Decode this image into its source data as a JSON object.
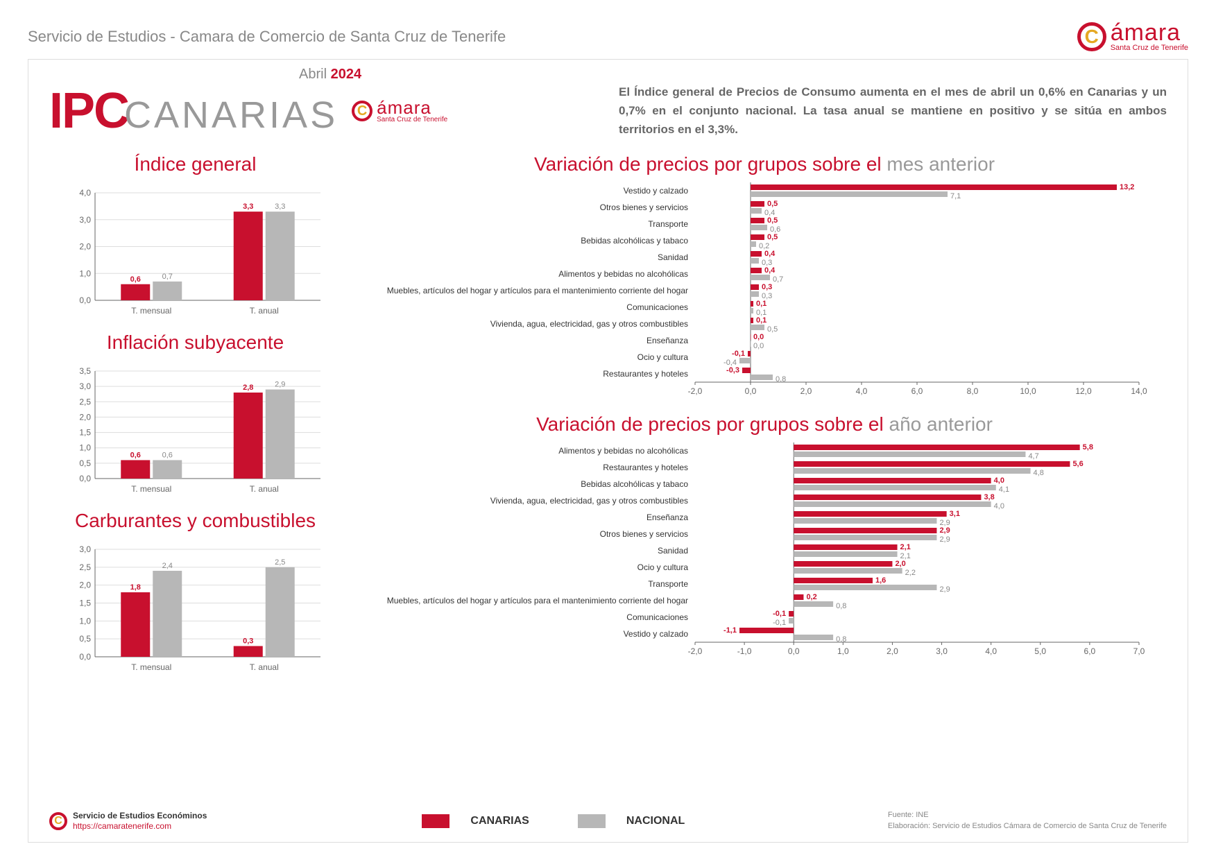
{
  "header_title": "Servicio de Estudios - Camara de Comercio de Santa Cruz de Tenerife",
  "logo": {
    "brand": "ámara",
    "sub": "Santa Cruz de Tenerife"
  },
  "date": {
    "month": "Abril",
    "year": "2024"
  },
  "ipc_title": {
    "ip": "IP",
    "can": "CANARIAS"
  },
  "summary": "El Índice general de Precios de Consumo aumenta en el mes de abril un 0,6% en Canarias y un 0,7% en el conjunto nacional. La tasa anual se mantiene en positivo y se sitúa en ambos territorios en el 3,3%.",
  "colors": {
    "canarias": "#c8102e",
    "nacional": "#b7b7b7",
    "grid": "#dddddd",
    "axis": "#666666",
    "text": "#333333",
    "grey_text": "#888888"
  },
  "legend": {
    "canarias": "CANARIAS",
    "nacional": "NACIONAL"
  },
  "source": {
    "fuente": "Fuente: INE",
    "elab": "Elaboración: Servicio de Estudios Cámara de Comercio de Santa Cruz de Tenerife"
  },
  "se_logo": {
    "line1": "Servicio de Estudios Económinos",
    "line2": "https://camaratenerife.com"
  },
  "charts_small": [
    {
      "title": "Índice general",
      "ylim": [
        0,
        4.0
      ],
      "ystep": 1.0,
      "categories": [
        "T. mensual",
        "T. anual"
      ],
      "series": [
        {
          "name": "canarias",
          "values": [
            0.6,
            3.3
          ],
          "labels": [
            "0,6",
            "3,3"
          ]
        },
        {
          "name": "nacional",
          "values": [
            0.7,
            3.3
          ],
          "labels": [
            "0,7",
            "3,3"
          ]
        }
      ]
    },
    {
      "title": "Inflación subyacente",
      "ylim": [
        0,
        3.5
      ],
      "ystep": 0.5,
      "categories": [
        "T. mensual",
        "T. anual"
      ],
      "series": [
        {
          "name": "canarias",
          "values": [
            0.6,
            2.8
          ],
          "labels": [
            "0,6",
            "2,8"
          ]
        },
        {
          "name": "nacional",
          "values": [
            0.6,
            2.9
          ],
          "labels": [
            "0,6",
            "2,9"
          ]
        }
      ]
    },
    {
      "title": "Carburantes y combustibles",
      "ylim": [
        0,
        3.0
      ],
      "ystep": 0.5,
      "categories": [
        "T. mensual",
        "T. anual"
      ],
      "series": [
        {
          "name": "canarias",
          "values": [
            1.8,
            0.3
          ],
          "labels": [
            "1,8",
            "0,3"
          ]
        },
        {
          "name": "nacional",
          "values": [
            2.4,
            2.5
          ],
          "labels": [
            "2,4",
            "2,5"
          ]
        }
      ]
    }
  ],
  "chart_month": {
    "title_red": "Variación de precios por grupos sobre el ",
    "title_grey": "mes anterior",
    "xlim": [
      -2,
      14
    ],
    "xstep": 2,
    "rows": [
      {
        "label": "Vestido y calzado",
        "c": 13.2,
        "n": 7.1,
        "cl": "13,2",
        "nl": "7,1"
      },
      {
        "label": "Otros bienes y servicios",
        "c": 0.5,
        "n": 0.4,
        "cl": "0,5",
        "nl": "0,4"
      },
      {
        "label": "Transporte",
        "c": 0.5,
        "n": 0.6,
        "cl": "0,5",
        "nl": "0,6"
      },
      {
        "label": "Bebidas alcohólicas y tabaco",
        "c": 0.5,
        "n": 0.2,
        "cl": "0,5",
        "nl": "0,2"
      },
      {
        "label": "Sanidad",
        "c": 0.4,
        "n": 0.3,
        "cl": "0,4",
        "nl": "0,3"
      },
      {
        "label": "Alimentos y bebidas no alcohólicas",
        "c": 0.4,
        "n": 0.7,
        "cl": "0,4",
        "nl": "0,7"
      },
      {
        "label": "Muebles, artículos del hogar y artículos para el mantenimiento corriente del hogar",
        "c": 0.3,
        "n": 0.3,
        "cl": "0,3",
        "nl": "0,3"
      },
      {
        "label": "Comunicaciones",
        "c": 0.1,
        "n": 0.1,
        "cl": "0,1",
        "nl": "0,1"
      },
      {
        "label": "Vivienda, agua, electricidad, gas y otros combustibles",
        "c": 0.1,
        "n": 0.5,
        "cl": "0,1",
        "nl": "0,5"
      },
      {
        "label": "Enseñanza",
        "c": 0.0,
        "n": 0.0,
        "cl": "0,0",
        "nl": "0,0"
      },
      {
        "label": "Ocio y cultura",
        "c": -0.1,
        "n": -0.4,
        "cl": "-0,1",
        "nl": "-0,4"
      },
      {
        "label": "Restaurantes y hoteles",
        "c": -0.3,
        "n": 0.8,
        "cl": "-0,3",
        "nl": "0,8"
      }
    ]
  },
  "chart_year": {
    "title_red": "Variación de precios por grupos sobre el ",
    "title_grey": "año anterior",
    "xlim": [
      -2,
      7
    ],
    "xstep": 1,
    "rows": [
      {
        "label": "Alimentos y bebidas no alcohólicas",
        "c": 5.8,
        "n": 4.7,
        "cl": "5,8",
        "nl": "4,7"
      },
      {
        "label": "Restaurantes y hoteles",
        "c": 5.6,
        "n": 4.8,
        "cl": "5,6",
        "nl": "4,8"
      },
      {
        "label": "Bebidas alcohólicas y tabaco",
        "c": 4.0,
        "n": 4.1,
        "cl": "4,0",
        "nl": "4,1"
      },
      {
        "label": "Vivienda, agua, electricidad, gas y otros combustibles",
        "c": 3.8,
        "n": 4.0,
        "cl": "3,8",
        "nl": "4,0"
      },
      {
        "label": "Enseñanza",
        "c": 3.1,
        "n": 2.9,
        "cl": "3,1",
        "nl": "2,9"
      },
      {
        "label": "Otros bienes y servicios",
        "c": 2.9,
        "n": 2.9,
        "cl": "2,9",
        "nl": "2,9"
      },
      {
        "label": "Sanidad",
        "c": 2.1,
        "n": 2.1,
        "cl": "2,1",
        "nl": "2,1"
      },
      {
        "label": "Ocio y cultura",
        "c": 2.0,
        "n": 2.2,
        "cl": "2,0",
        "nl": "2,2"
      },
      {
        "label": "Transporte",
        "c": 1.6,
        "n": 2.9,
        "cl": "1,6",
        "nl": "2,9"
      },
      {
        "label": "Muebles, artículos del hogar y artículos para el mantenimiento corriente del hogar",
        "c": 0.2,
        "n": 0.8,
        "cl": "0,2",
        "nl": "0,8"
      },
      {
        "label": "Comunicaciones",
        "c": -0.1,
        "n": -0.1,
        "cl": "-0,1",
        "nl": "-0,1"
      },
      {
        "label": "Vestido y calzado",
        "c": -1.1,
        "n": 0.8,
        "cl": "-1,1",
        "nl": "0,8"
      }
    ]
  }
}
